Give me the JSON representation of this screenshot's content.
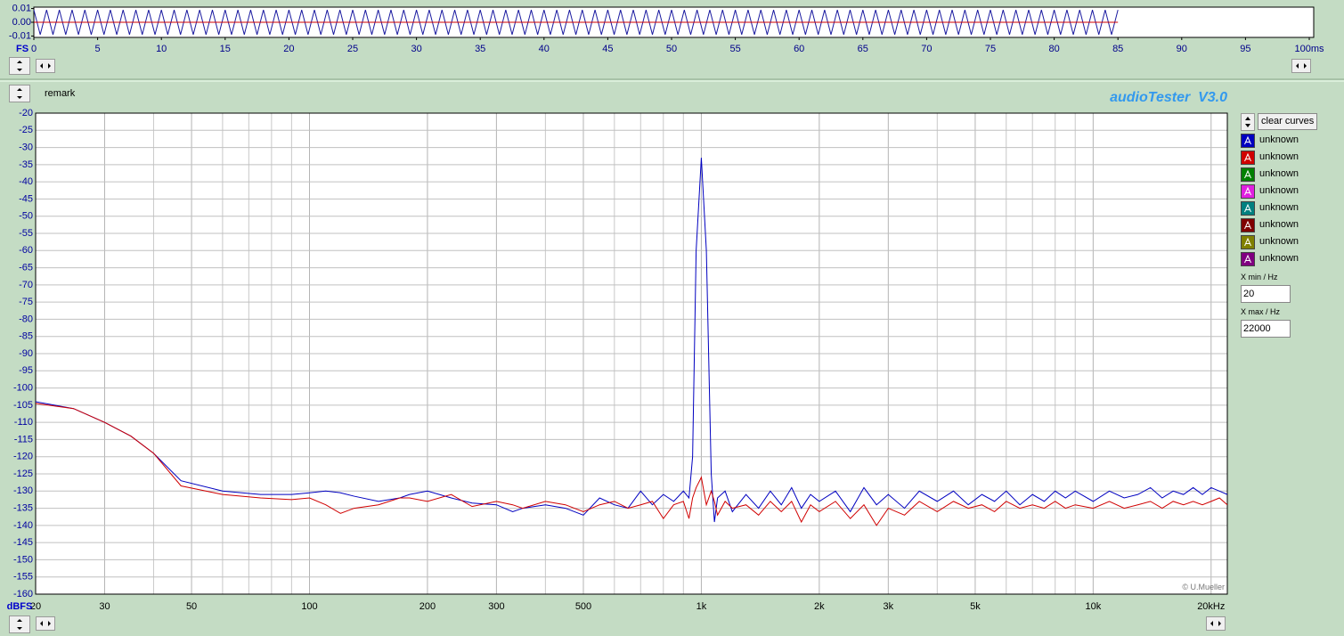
{
  "chart_data": [
    {
      "type": "line",
      "ylabel": "FS",
      "xlim": [
        0,
        100
      ],
      "xticks": [
        0,
        5,
        10,
        15,
        20,
        25,
        30,
        35,
        40,
        45,
        50,
        55,
        60,
        65,
        70,
        75,
        80,
        85,
        90,
        95,
        {
          "value": 100,
          "label": "100ms"
        }
      ],
      "ylim": [
        -0.011,
        0.011
      ],
      "yticks": [
        0.01,
        {
          "value": 0,
          "label": "0.00"
        },
        -0.01
      ],
      "grid": false,
      "series": [
        {
          "name": "unknown",
          "color": "#1a1aa0",
          "x": [
            0,
            0.5,
            1,
            1.5,
            2,
            2.5,
            3,
            3.5,
            4,
            4.5,
            5,
            5.5,
            6,
            6.5,
            7,
            7.5,
            8,
            8.5,
            9,
            9.5,
            10,
            10.5,
            11,
            11.5,
            12,
            12.5,
            13,
            13.5,
            14,
            14.5,
            15,
            15.5,
            16,
            16.5,
            17,
            17.5,
            18,
            18.5,
            19,
            19.5,
            20,
            20.5,
            21,
            21.5,
            22,
            22.5,
            23,
            23.5,
            24,
            24.5,
            25,
            25.5,
            26,
            26.5,
            27,
            27.5,
            28,
            28.5,
            29,
            29.5,
            30,
            30.5,
            31,
            31.5,
            32,
            32.5,
            33,
            33.5,
            34,
            34.5,
            35,
            35.5,
            36,
            36.5,
            37,
            37.5,
            38,
            38.5,
            39,
            39.5,
            40,
            40.5,
            41,
            41.5,
            42,
            42.5,
            43,
            43.5,
            44,
            44.5,
            45,
            45.5,
            46,
            46.5,
            47,
            47.5,
            48,
            48.5,
            49,
            49.5,
            50,
            50.5,
            51,
            51.5,
            52,
            52.5,
            53,
            53.5,
            54,
            54.5,
            55,
            55.5,
            56,
            56.5,
            57,
            57.5,
            58,
            58.5,
            59,
            59.5,
            60,
            60.5,
            61,
            61.5,
            62,
            62.5,
            63,
            63.5,
            64,
            64.5,
            65,
            65.5,
            66,
            66.5,
            67,
            67.5,
            68,
            68.5,
            69,
            69.5,
            70,
            70.5,
            71,
            71.5,
            72,
            72.5,
            73,
            73.5,
            74,
            74.5,
            75,
            75.5,
            76,
            76.5,
            77,
            77.5,
            78,
            78.5,
            79,
            79.5,
            80,
            80.5,
            81,
            81.5,
            82,
            82.5,
            83,
            83.5,
            84,
            84.5,
            85
          ],
          "values": [
            0.009,
            -0.009,
            0.009,
            -0.009,
            0.009,
            -0.009,
            0.009,
            -0.009,
            0.009,
            -0.009,
            0.009,
            -0.009,
            0.009,
            -0.009,
            0.009,
            -0.009,
            0.009,
            -0.009,
            0.009,
            -0.009,
            0.009,
            -0.009,
            0.009,
            -0.009,
            0.009,
            -0.009,
            0.009,
            -0.009,
            0.009,
            -0.009,
            0.009,
            -0.009,
            0.009,
            -0.009,
            0.009,
            -0.009,
            0.009,
            -0.009,
            0.009,
            -0.009,
            0.009,
            -0.009,
            0.009,
            -0.009,
            0.009,
            -0.009,
            0.009,
            -0.009,
            0.009,
            -0.009,
            0.009,
            -0.009,
            0.009,
            -0.009,
            0.009,
            -0.009,
            0.009,
            -0.009,
            0.009,
            -0.009,
            0.009,
            -0.009,
            0.009,
            -0.009,
            0.009,
            -0.009,
            0.009,
            -0.009,
            0.009,
            -0.009,
            0.009,
            -0.009,
            0.009,
            -0.009,
            0.009,
            -0.009,
            0.009,
            -0.009,
            0.009,
            -0.009,
            0.009,
            -0.009,
            0.009,
            -0.009,
            0.009,
            -0.009,
            0.009,
            -0.009,
            0.009,
            -0.009,
            0.009,
            -0.009,
            0.009,
            -0.009,
            0.009,
            -0.009,
            0.009,
            -0.009,
            0.009,
            -0.009,
            0.009,
            -0.009,
            0.009,
            -0.009,
            0.009,
            -0.009,
            0.009,
            -0.009,
            0.009,
            -0.009,
            0.009,
            -0.009,
            0.009,
            -0.009,
            0.009,
            -0.009,
            0.009,
            -0.009,
            0.009,
            -0.009,
            0.009,
            -0.009,
            0.009,
            -0.009,
            0.009,
            -0.009,
            0.009,
            -0.009,
            0.009,
            -0.009,
            0.009,
            -0.009,
            0.009,
            -0.009,
            0.009,
            -0.009,
            0.009,
            -0.009,
            0.009,
            -0.009,
            0.009,
            -0.009,
            0.009,
            -0.009,
            0.009,
            -0.009,
            0.009,
            -0.009,
            0.009,
            -0.009,
            0.009,
            -0.009,
            0.009,
            -0.009,
            0.009,
            -0.009,
            0.009,
            -0.009,
            0.009,
            -0.009,
            0.009,
            -0.009,
            0.009,
            -0.009,
            0.009,
            -0.009,
            0.009,
            -0.009,
            0.009,
            -0.009,
            0.009
          ]
        },
        {
          "name": "unknown",
          "color": "#d00000",
          "x": [
            0,
            85
          ],
          "values": [
            0,
            0
          ]
        }
      ]
    },
    {
      "type": "line",
      "ylabel": "dBFS",
      "xlog": true,
      "grid": true,
      "xlim": [
        20,
        22000
      ],
      "xticks": [
        20,
        30,
        50,
        100,
        200,
        300,
        500,
        {
          "value": 1000,
          "label": "1k"
        },
        {
          "value": 2000,
          "label": "2k"
        },
        {
          "value": 3000,
          "label": "3k"
        },
        {
          "value": 5000,
          "label": "5k"
        },
        {
          "value": 10000,
          "label": "10k"
        },
        {
          "value": 20000,
          "label": "20kHz"
        }
      ],
      "minor_xticks": [
        40,
        60,
        70,
        80,
        90,
        400,
        600,
        700,
        800,
        900,
        4000,
        6000,
        7000,
        8000,
        9000
      ],
      "ylim": [
        -160,
        -20
      ],
      "yticks": [
        -20,
        -25,
        -30,
        -35,
        -40,
        -45,
        -50,
        -55,
        -60,
        -65,
        -70,
        -75,
        -80,
        -85,
        -90,
        -95,
        -100,
        -105,
        -110,
        -115,
        -120,
        -125,
        -130,
        -135,
        -140,
        -145,
        -150,
        -155,
        -160
      ],
      "x": [
        20,
        25,
        30,
        35,
        40,
        47,
        60,
        75,
        90,
        100,
        110,
        120,
        130,
        150,
        170,
        180,
        200,
        230,
        260,
        300,
        330,
        350,
        400,
        450,
        500,
        550,
        600,
        650,
        700,
        750,
        800,
        850,
        900,
        930,
        950,
        970,
        1000,
        1030,
        1060,
        1080,
        1100,
        1150,
        1200,
        1300,
        1400,
        1500,
        1600,
        1700,
        1800,
        1900,
        2000,
        2200,
        2400,
        2600,
        2800,
        3000,
        3300,
        3600,
        4000,
        4400,
        4800,
        5200,
        5600,
        6000,
        6500,
        7000,
        7500,
        8000,
        8500,
        9000,
        10000,
        11000,
        12000,
        13000,
        14000,
        15000,
        16000,
        17000,
        18000,
        19000,
        20000,
        21000,
        22000
      ],
      "series": [
        {
          "name": "unknown",
          "color": "#0000c0",
          "values": [
            -104,
            -106,
            -110,
            -114,
            -119,
            -127,
            -130,
            -131,
            -131,
            -130.5,
            -130,
            -130.5,
            -131.5,
            -133,
            -132,
            -131,
            -130,
            -132,
            -133.5,
            -134,
            -136,
            -135,
            -134,
            -135,
            -137,
            -132,
            -134,
            -135,
            -130,
            -134,
            -131,
            -133,
            -130,
            -132,
            -120,
            -60,
            -33,
            -60,
            -125,
            -139,
            -132,
            -130,
            -136,
            -131,
            -135,
            -130,
            -134,
            -129,
            -135,
            -131,
            -133,
            -130,
            -136,
            -129,
            -134,
            -131,
            -135,
            -130,
            -133,
            -130,
            -134,
            -131,
            -133,
            -130,
            -134,
            -131,
            -133,
            -130,
            -132,
            -130,
            -133,
            -130,
            -132,
            -131,
            -129,
            -132,
            -130,
            -131,
            -129,
            -131,
            -129,
            -130,
            -131
          ]
        },
        {
          "name": "unknown",
          "color": "#d00000",
          "values": [
            -104.5,
            -106,
            -110,
            -114,
            -119,
            -128.5,
            -131,
            -132,
            -132.5,
            -132,
            -134,
            -136.5,
            -135,
            -134,
            -132,
            -132,
            -133,
            -131,
            -134.5,
            -133,
            -134,
            -135,
            -133,
            -134,
            -136,
            -134,
            -133,
            -135,
            -134,
            -133,
            -138,
            -134,
            -133,
            -138,
            -132,
            -129,
            -126,
            -134,
            -130,
            -133,
            -137,
            -133,
            -135,
            -134,
            -137,
            -133,
            -136,
            -133,
            -139,
            -134,
            -136,
            -133,
            -138,
            -134,
            -140,
            -135,
            -137,
            -133,
            -136,
            -133,
            -135,
            -134,
            -136,
            -133,
            -135,
            -134,
            -135,
            -133,
            -135,
            -134,
            -135,
            -133,
            -135,
            -134,
            -133,
            -135,
            -133,
            -134,
            -133,
            -134,
            -133,
            -132,
            -134
          ]
        }
      ]
    }
  ],
  "ui": {
    "remark": "remark",
    "brand": "audioTester  V3.0",
    "clear_button": "clear curves",
    "copyright": "© U.Mueller",
    "xmin_label": "X min / Hz",
    "xmax_label": "X max / Hz",
    "extra_curves": [
      {
        "name": "unknown",
        "color": "#008000"
      },
      {
        "name": "unknown",
        "color": "#e020e0"
      },
      {
        "name": "unknown",
        "color": "#008080"
      },
      {
        "name": "unknown",
        "color": "#800000"
      },
      {
        "name": "unknown",
        "color": "#808000"
      },
      {
        "name": "unknown",
        "color": "#800080"
      }
    ]
  }
}
